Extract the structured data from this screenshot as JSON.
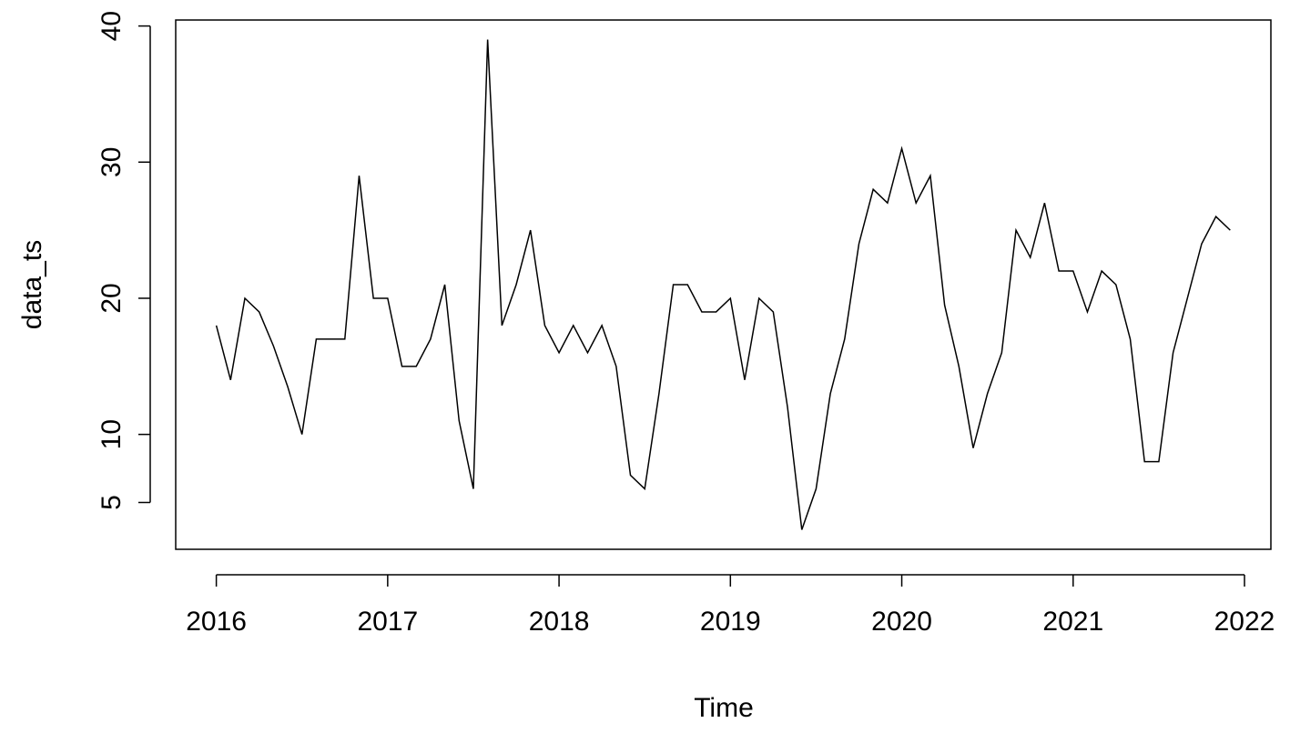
{
  "chart_data": {
    "type": "line",
    "xlabel": "Time",
    "ylabel": "data_ts",
    "color": "#000000",
    "x": [
      2016,
      2016.0833,
      2016.1667,
      2016.25,
      2016.3333,
      2016.4167,
      2016.5,
      2016.5833,
      2016.6667,
      2016.75,
      2016.8333,
      2016.9167,
      2017,
      2017.0833,
      2017.1667,
      2017.25,
      2017.3333,
      2017.4167,
      2017.5,
      2017.5833,
      2017.6667,
      2017.75,
      2017.8333,
      2017.9167,
      2018,
      2018.0833,
      2018.1667,
      2018.25,
      2018.3333,
      2018.4167,
      2018.5,
      2018.5833,
      2018.6667,
      2018.75,
      2018.8333,
      2018.9167,
      2019,
      2019.0833,
      2019.1667,
      2019.25,
      2019.3333,
      2019.4167,
      2019.5,
      2019.5833,
      2019.6667,
      2019.75,
      2019.8333,
      2019.9167,
      2020,
      2020.0833,
      2020.1667,
      2020.25,
      2020.3333,
      2020.4167,
      2020.5,
      2020.5833,
      2020.6667,
      2020.75,
      2020.8333,
      2020.9167,
      2021,
      2021.0833,
      2021.1667,
      2021.25,
      2021.3333,
      2021.4167,
      2021.5,
      2021.5833,
      2021.6667,
      2021.75,
      2021.8333,
      2021.9167
    ],
    "values": [
      18,
      14,
      20,
      19,
      16.5,
      13.5,
      10,
      17,
      17,
      17,
      29,
      20,
      20,
      15,
      15,
      17,
      21,
      11,
      6,
      39,
      18,
      21,
      25,
      18,
      16,
      18,
      16,
      18,
      15,
      7,
      6,
      13,
      21,
      21,
      19,
      19,
      20,
      14,
      20,
      19,
      12,
      3,
      6,
      13,
      17,
      24,
      28,
      27,
      31,
      27,
      29,
      19.5,
      15,
      9,
      13,
      16,
      25,
      23,
      27,
      22,
      22,
      19,
      22,
      21,
      17,
      8,
      8,
      16,
      20,
      24,
      26,
      25
    ],
    "xlim": [
      2015.763,
      2022.154
    ],
    "xticks": [
      2016,
      2017,
      2018,
      2019,
      2020,
      2021,
      2022
    ],
    "ylim": [
      1.56,
      40.44
    ],
    "yticks": [
      5,
      10,
      20,
      30,
      40
    ]
  }
}
